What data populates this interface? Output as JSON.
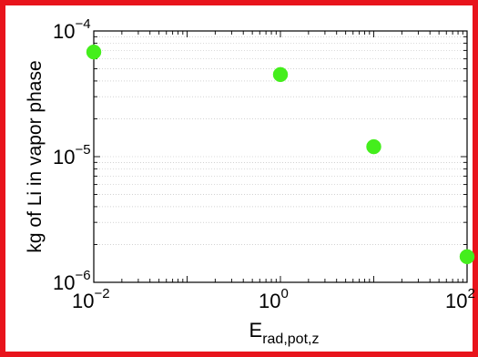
{
  "frame_color": "#e8141c",
  "chart_data": {
    "type": "scatter",
    "x_scale": "log",
    "y_scale": "log",
    "xlim": [
      0.01,
      100
    ],
    "ylim": [
      1e-06,
      0.0001
    ],
    "grid": "y-minor dotted",
    "marker_color": "#44ee1c",
    "points": [
      {
        "x": 0.01,
        "y": 6.8e-05
      },
      {
        "x": 1,
        "y": 4.5e-05
      },
      {
        "x": 10,
        "y": 1.2e-05
      },
      {
        "x": 100,
        "y": 1.6e-06
      }
    ],
    "ylabel": "kg of Li in vapor phase",
    "xlabel_main": "E",
    "xlabel_sub": "rad,pot,z",
    "xticks": [
      {
        "base": "10",
        "exp": "−2",
        "value": 0.01
      },
      {
        "base": "10",
        "exp": "0",
        "value": 1
      },
      {
        "base": "10",
        "exp": "2",
        "value": 100
      }
    ],
    "yticks": [
      {
        "base": "10",
        "exp": "−4",
        "value": 0.0001
      },
      {
        "base": "10",
        "exp": "−5",
        "value": 1e-05
      },
      {
        "base": "10",
        "exp": "−6",
        "value": 1e-06
      }
    ]
  }
}
